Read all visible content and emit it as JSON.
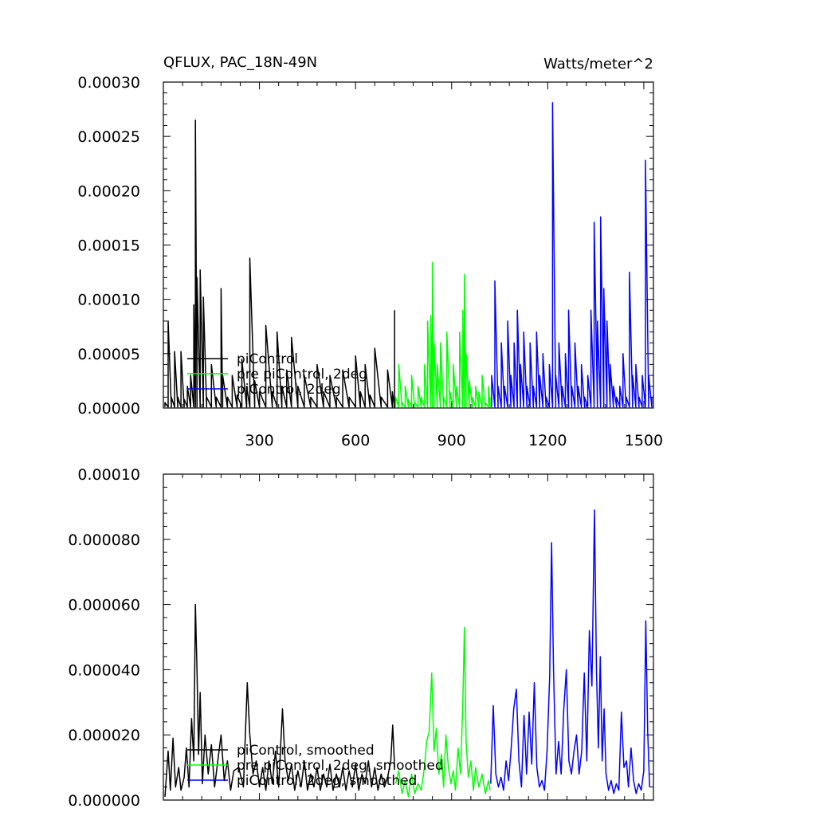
{
  "chart_data": [
    {
      "type": "line",
      "title": "QFLUX, PAC_18N-49N",
      "units": "Watts/meter^2",
      "xlim": [
        0,
        1530
      ],
      "ylim": [
        0,
        0.0003
      ],
      "x_ticks": [
        "300",
        "600",
        "900",
        "1200",
        "1500"
      ],
      "y_ticks": [
        "0.00000",
        "0.00005",
        "0.00010",
        "0.00015",
        "0.00020",
        "0.00025",
        "0.00030"
      ],
      "legend_position": "lower-left",
      "series": [
        {
          "name": "piControl",
          "color": "#000000",
          "x": [
            5,
            15,
            25,
            35,
            45,
            55,
            65,
            75,
            85,
            95,
            100,
            105,
            115,
            125,
            135,
            150,
            165,
            180,
            185,
            200,
            215,
            230,
            245,
            260,
            270,
            285,
            300,
            320,
            340,
            355,
            370,
            385,
            400,
            420,
            440,
            460,
            480,
            500,
            520,
            540,
            560,
            580,
            600,
            615,
            630,
            645,
            660,
            680,
            700,
            715,
            722
          ],
          "values": [
            5e-06,
            8e-05,
            1e-05,
            5.2e-05,
            1e-05,
            5.2e-05,
            8e-06,
            2e-05,
            3e-05,
            9.5e-05,
            0.000265,
            0.00012,
            0.000127,
            0.000102,
            1e-05,
            4e-05,
            1e-05,
            0.00011,
            3e-05,
            1e-05,
            3e-05,
            1.2e-05,
            4.5e-05,
            2e-05,
            0.000138,
            2.5e-05,
            1.5e-05,
            7.6e-05,
            1.5e-05,
            7e-05,
            2e-05,
            3.5e-05,
            6.5e-05,
            2e-05,
            3e-05,
            1e-05,
            4e-05,
            1.5e-05,
            3e-05,
            1e-05,
            3.5e-05,
            1e-05,
            4.8e-05,
            1.5e-05,
            4e-05,
            1.2e-05,
            5.5e-05,
            1e-05,
            3.5e-05,
            1.5e-05,
            9e-05
          ]
        },
        {
          "name": "pre piControl, 2deg",
          "color": "#00ff00",
          "x": [
            725,
            735,
            745,
            755,
            765,
            775,
            785,
            795,
            805,
            815,
            825,
            835,
            840,
            845,
            855,
            865,
            875,
            885,
            895,
            905,
            915,
            925,
            935,
            940,
            945,
            955,
            965,
            975,
            985,
            995,
            1005,
            1015,
            1020
          ],
          "values": [
            1e-05,
            4e-05,
            5e-06,
            2e-05,
            8e-06,
            3e-05,
            5e-06,
            2e-05,
            1e-05,
            4e-05,
            8e-05,
            8.5e-05,
            0.000134,
            6e-05,
            4e-05,
            6e-05,
            1e-05,
            7e-05,
            1.5e-05,
            4e-05,
            2e-05,
            7e-05,
            9e-05,
            0.000123,
            5e-05,
            2.5e-05,
            1e-05,
            2e-05,
            1.5e-05,
            3e-05,
            5e-06,
            2e-05,
            1e-05
          ]
        },
        {
          "name": "piControl, 2deg",
          "color": "#0000ff",
          "x": [
            1025,
            1035,
            1045,
            1055,
            1065,
            1075,
            1085,
            1095,
            1105,
            1115,
            1125,
            1135,
            1145,
            1155,
            1165,
            1175,
            1185,
            1195,
            1205,
            1215,
            1225,
            1235,
            1245,
            1255,
            1265,
            1275,
            1285,
            1295,
            1305,
            1315,
            1325,
            1335,
            1345,
            1355,
            1365,
            1375,
            1385,
            1395,
            1405,
            1415,
            1425,
            1435,
            1445,
            1455,
            1465,
            1475,
            1485,
            1495,
            1505,
            1515,
            1525
          ],
          "values": [
            3e-05,
            0.000117,
            2e-05,
            6e-05,
            2e-05,
            8e-05,
            3e-05,
            6e-05,
            9e-05,
            4e-05,
            7e-05,
            2e-05,
            6e-05,
            2e-05,
            7e-05,
            3e-05,
            5e-05,
            1e-05,
            4e-05,
            0.000281,
            3e-05,
            6e-05,
            2e-05,
            5e-05,
            9e-05,
            2e-05,
            6e-05,
            2e-05,
            4e-05,
            1e-05,
            3e-05,
            9e-05,
            0.000171,
            8e-05,
            0.000176,
            0.00011,
            8e-05,
            4e-05,
            2e-05,
            1e-05,
            2e-05,
            5e-05,
            1e-05,
            0.000125,
            3e-05,
            4e-05,
            1e-05,
            3e-05,
            0.000228,
            3e-05,
            1e-05
          ]
        }
      ]
    },
    {
      "type": "line",
      "xlim": [
        0,
        1530
      ],
      "ylim": [
        0,
        0.0001
      ],
      "y_ticks": [
        "0.000000",
        "0.000020",
        "0.000040",
        "0.000060",
        "0.000080",
        "0.00010"
      ],
      "legend_position": "lower-left",
      "series": [
        {
          "name": "piControl, smoothed",
          "color": "#000000",
          "x": [
            5,
            15,
            22,
            30,
            38,
            48,
            55,
            65,
            72,
            80,
            88,
            95,
            100,
            105,
            110,
            115,
            122,
            130,
            140,
            150,
            160,
            170,
            180,
            190,
            200,
            210,
            220,
            235,
            250,
            262,
            270,
            280,
            290,
            300,
            310,
            320,
            330,
            340,
            350,
            360,
            372,
            380,
            390,
            400,
            410,
            420,
            430,
            440,
            450,
            460,
            470,
            480,
            490,
            500,
            510,
            520,
            530,
            540,
            550,
            560,
            570,
            580,
            590,
            600,
            610,
            620,
            630,
            640,
            650,
            660,
            670,
            680,
            690,
            700,
            710,
            716,
            722
          ],
          "values": [
            1e-06,
            1.5e-05,
            3e-06,
            1.9e-05,
            4e-06,
            1e-05,
            3e-06,
            7e-06,
            1.6e-05,
            4e-06,
            2.5e-05,
            1.2e-05,
            6e-05,
            4e-05,
            1.4e-05,
            3.3e-05,
            5e-06,
            2e-05,
            8e-06,
            1.7e-05,
            4e-06,
            1.2e-05,
            2e-05,
            6e-06,
            1.2e-05,
            3e-06,
            9e-06,
            1e-05,
            4e-06,
            3.6e-05,
            2e-05,
            8e-06,
            1.2e-05,
            4e-06,
            1e-05,
            3e-06,
            1.2e-05,
            5e-06,
            1.5e-05,
            4e-06,
            2.8e-05,
            1.2e-05,
            6e-06,
            1.1e-05,
            3e-06,
            9e-06,
            4e-06,
            1.2e-05,
            3e-06,
            8e-06,
            4e-06,
            1e-05,
            3e-06,
            8e-06,
            4e-06,
            1.1e-05,
            3e-06,
            8e-06,
            4e-06,
            1e-05,
            3e-06,
            9e-06,
            4e-06,
            1.1e-05,
            3e-06,
            8e-06,
            5e-06,
            1.2e-05,
            4e-06,
            1e-05,
            3e-06,
            8e-06,
            4e-06,
            7e-06,
            1.2e-05,
            2.3e-05,
            1e-05
          ]
        },
        {
          "name": "pre piControl, 2deg, smoothed",
          "color": "#00ff00",
          "x": [
            725,
            735,
            745,
            755,
            765,
            775,
            785,
            795,
            805,
            815,
            822,
            830,
            838,
            845,
            852,
            860,
            868,
            875,
            882,
            890,
            898,
            905,
            912,
            920,
            928,
            935,
            940,
            945,
            952,
            960,
            968,
            975,
            985,
            995,
            1005,
            1015,
            1020
          ],
          "values": [
            5e-06,
            9e-06,
            2e-06,
            6e-06,
            1e-06,
            8e-06,
            2e-06,
            5e-06,
            3e-06,
            1e-05,
            1.8e-05,
            2.1e-05,
            3.9e-05,
            1.5e-05,
            2.2e-05,
            8e-06,
            1.4e-05,
            4e-06,
            2e-05,
            1e-05,
            5e-06,
            9e-06,
            3e-06,
            1.6e-05,
            8e-06,
            3e-05,
            5.3e-05,
            1.8e-05,
            7e-06,
            1.2e-05,
            3e-06,
            1e-05,
            4e-06,
            8e-06,
            2e-06,
            6e-06,
            3e-06
          ]
        },
        {
          "name": "piControl, 2deg, smoothed",
          "color": "#0000ff",
          "x": [
            1022,
            1030,
            1038,
            1046,
            1054,
            1062,
            1070,
            1078,
            1086,
            1094,
            1102,
            1110,
            1118,
            1126,
            1134,
            1142,
            1150,
            1158,
            1166,
            1174,
            1182,
            1190,
            1198,
            1206,
            1212,
            1218,
            1226,
            1234,
            1242,
            1250,
            1258,
            1266,
            1274,
            1282,
            1290,
            1298,
            1306,
            1314,
            1322,
            1330,
            1338,
            1346,
            1352,
            1358,
            1364,
            1370,
            1376,
            1382,
            1390,
            1398,
            1406,
            1414,
            1422,
            1430,
            1438,
            1446,
            1452,
            1460,
            1468,
            1476,
            1484,
            1492,
            1500,
            1506,
            1512,
            1518
          ],
          "values": [
            5e-06,
            2.9e-05,
            8e-06,
            4e-06,
            7e-06,
            3e-06,
            1.2e-05,
            6e-06,
            1.6e-05,
            2.8e-05,
            3.4e-05,
            1.2e-05,
            4e-06,
            2.6e-05,
            8e-06,
            2.7e-05,
            1.1e-05,
            3.6e-05,
            1e-05,
            4e-06,
            6e-06,
            3e-06,
            1.5e-05,
            3.8e-05,
            7.9e-05,
            4e-05,
            8e-06,
            1.8e-05,
            8e-06,
            2.8e-05,
            4e-05,
            1.2e-05,
            8e-06,
            1.5e-05,
            2e-05,
            8e-06,
            1.5e-05,
            3.9e-05,
            1.2e-05,
            5.2e-05,
            3.5e-05,
            8.9e-05,
            4e-05,
            1.6e-05,
            4.4e-05,
            1.2e-05,
            2.8e-05,
            8e-06,
            3e-06,
            6e-06,
            2e-06,
            5e-06,
            3e-06,
            2.7e-05,
            1e-05,
            1.2e-05,
            4e-06,
            1.6e-05,
            6e-06,
            2e-06,
            5e-06,
            3e-06,
            9e-06,
            5.5e-05,
            2.1e-05,
            4e-06
          ]
        }
      ]
    }
  ]
}
